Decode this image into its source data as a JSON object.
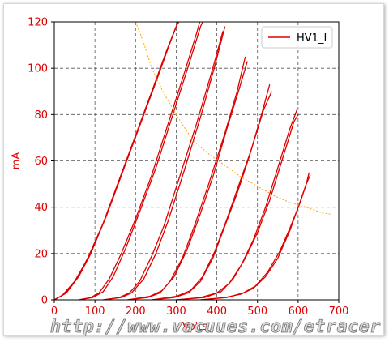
{
  "chart_data": {
    "type": "line",
    "xlabel": "Volts",
    "ylabel": "mA",
    "xlim": [
      0,
      700
    ],
    "ylim": [
      0,
      120
    ],
    "x_ticks": [
      "0",
      "100",
      "200",
      "300",
      "400",
      "500",
      "600",
      "700"
    ],
    "y_ticks": [
      "0",
      "20",
      "40",
      "60",
      "80",
      "100",
      "120"
    ],
    "grid": true,
    "legend": {
      "position": "top-right",
      "label": "HV1_I"
    },
    "series_color": "#dd0000",
    "load_line_color": "#ffa500",
    "axis_text_color": "#dd0000",
    "series": [
      {
        "points": [
          [
            0,
            0
          ],
          [
            20,
            2
          ],
          [
            50,
            8
          ],
          [
            80,
            17
          ],
          [
            120,
            33
          ],
          [
            160,
            52
          ],
          [
            200,
            71
          ],
          [
            240,
            90
          ],
          [
            275,
            107
          ],
          [
            300,
            118
          ],
          [
            310,
            122
          ]
        ]
      },
      {
        "points": [
          [
            0,
            0
          ],
          [
            25,
            2.5
          ],
          [
            55,
            9
          ],
          [
            85,
            19
          ],
          [
            125,
            35
          ],
          [
            165,
            54
          ],
          [
            205,
            73
          ],
          [
            245,
            92
          ],
          [
            280,
            109
          ],
          [
            305,
            120
          ],
          [
            312,
            122
          ]
        ]
      },
      {
        "points": [
          [
            0,
            0
          ],
          [
            30,
            3
          ],
          [
            60,
            10
          ],
          [
            90,
            20
          ],
          [
            130,
            37
          ],
          [
            170,
            56
          ],
          [
            210,
            75
          ],
          [
            250,
            94
          ],
          [
            285,
            111
          ],
          [
            300,
            118
          ],
          [
            313,
            122
          ]
        ]
      },
      {
        "points": [
          [
            60,
            0
          ],
          [
            90,
            1
          ],
          [
            110,
            3
          ],
          [
            135,
            9
          ],
          [
            165,
            20
          ],
          [
            200,
            35
          ],
          [
            240,
            54
          ],
          [
            280,
            76
          ],
          [
            320,
            98
          ],
          [
            350,
            115
          ],
          [
            358,
            120
          ]
        ]
      },
      {
        "points": [
          [
            60,
            0
          ],
          [
            95,
            1
          ],
          [
            120,
            3.5
          ],
          [
            145,
            10
          ],
          [
            175,
            22
          ],
          [
            210,
            38
          ],
          [
            250,
            57
          ],
          [
            290,
            79
          ],
          [
            330,
            101
          ],
          [
            360,
            118
          ],
          [
            365,
            120
          ]
        ]
      },
      {
        "points": [
          [
            120,
            0
          ],
          [
            160,
            1
          ],
          [
            185,
            3
          ],
          [
            210,
            8
          ],
          [
            240,
            19
          ],
          [
            270,
            32
          ],
          [
            310,
            54
          ],
          [
            350,
            76
          ],
          [
            390,
            100
          ],
          [
            415,
            116
          ]
        ]
      },
      {
        "points": [
          [
            120,
            0
          ],
          [
            165,
            1
          ],
          [
            190,
            3
          ],
          [
            220,
            9
          ],
          [
            250,
            20
          ],
          [
            280,
            34
          ],
          [
            320,
            56
          ],
          [
            360,
            79
          ],
          [
            395,
            101
          ],
          [
            420,
            118
          ]
        ]
      },
      {
        "points": [
          [
            180,
            0
          ],
          [
            230,
            1
          ],
          [
            260,
            3
          ],
          [
            285,
            8
          ],
          [
            315,
            18
          ],
          [
            345,
            32
          ],
          [
            380,
            50
          ],
          [
            420,
            72
          ],
          [
            450,
            90
          ],
          [
            470,
            105
          ]
        ]
      },
      {
        "points": [
          [
            180,
            0
          ],
          [
            235,
            1.5
          ],
          [
            265,
            4
          ],
          [
            295,
            10
          ],
          [
            325,
            21
          ],
          [
            355,
            35
          ],
          [
            390,
            53
          ],
          [
            425,
            74
          ],
          [
            455,
            91
          ],
          [
            475,
            103
          ]
        ]
      },
      {
        "points": [
          [
            240,
            0
          ],
          [
            295,
            1
          ],
          [
            330,
            3
          ],
          [
            360,
            8
          ],
          [
            390,
            18
          ],
          [
            420,
            32
          ],
          [
            450,
            46
          ],
          [
            480,
            62
          ],
          [
            510,
            80
          ],
          [
            530,
            93
          ]
        ]
      },
      {
        "points": [
          [
            240,
            0
          ],
          [
            300,
            1.5
          ],
          [
            335,
            4
          ],
          [
            365,
            10
          ],
          [
            395,
            21
          ],
          [
            425,
            35
          ],
          [
            455,
            50
          ],
          [
            485,
            65
          ],
          [
            515,
            82
          ],
          [
            535,
            90
          ]
        ]
      },
      {
        "points": [
          [
            300,
            0
          ],
          [
            360,
            1
          ],
          [
            400,
            3
          ],
          [
            430,
            7
          ],
          [
            460,
            15
          ],
          [
            490,
            26
          ],
          [
            520,
            40
          ],
          [
            550,
            57
          ],
          [
            580,
            74
          ],
          [
            597,
            82
          ]
        ]
      },
      {
        "points": [
          [
            300,
            0
          ],
          [
            370,
            1
          ],
          [
            410,
            3.5
          ],
          [
            440,
            9
          ],
          [
            470,
            18
          ],
          [
            500,
            29
          ],
          [
            530,
            43
          ],
          [
            560,
            60
          ],
          [
            590,
            77
          ],
          [
            600,
            80
          ]
        ]
      },
      {
        "points": [
          [
            360,
            0
          ],
          [
            420,
            1
          ],
          [
            460,
            2.5
          ],
          [
            490,
            5
          ],
          [
            520,
            10
          ],
          [
            550,
            18
          ],
          [
            580,
            30
          ],
          [
            600,
            40
          ],
          [
            620,
            50
          ],
          [
            627,
            55
          ]
        ]
      },
      {
        "points": [
          [
            360,
            0
          ],
          [
            425,
            1
          ],
          [
            465,
            3
          ],
          [
            495,
            6
          ],
          [
            525,
            12
          ],
          [
            555,
            21
          ],
          [
            580,
            31
          ],
          [
            605,
            42
          ],
          [
            620,
            50
          ],
          [
            630,
            54
          ]
        ]
      }
    ],
    "load_line": {
      "points": [
        [
          200,
          120
        ],
        [
          220,
          111
        ],
        [
          240,
          100
        ],
        [
          270,
          89
        ],
        [
          300,
          80
        ],
        [
          340,
          69
        ],
        [
          380,
          63
        ],
        [
          420,
          58
        ],
        [
          460,
          53
        ],
        [
          500,
          49
        ],
        [
          540,
          45
        ],
        [
          580,
          42
        ],
        [
          620,
          40
        ],
        [
          660,
          37.5
        ],
        [
          680,
          37
        ]
      ]
    }
  },
  "watermark": "http://www.vacuues.com/etracer"
}
